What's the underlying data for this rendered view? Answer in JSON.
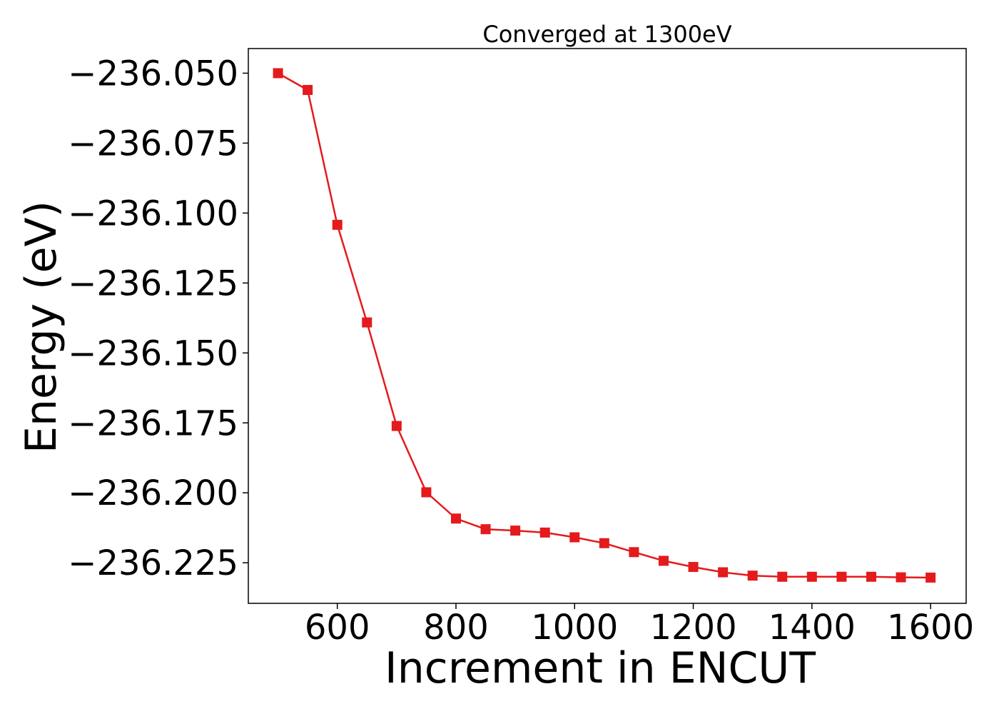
{
  "chart_data": {
    "type": "line",
    "title": "Converged at 1300eV",
    "xlabel": "Increment in ENCUT",
    "ylabel": "Energy (eV)",
    "xlim": [
      450,
      1660
    ],
    "ylim": [
      -236.2395,
      -236.0412
    ],
    "x_ticks": [
      600,
      800,
      1000,
      1200,
      1400,
      1600
    ],
    "x_tick_labels": [
      "600",
      "800",
      "1000",
      "1200",
      "1400",
      "1600"
    ],
    "y_ticks": [
      -236.05,
      -236.075,
      -236.1,
      -236.125,
      -236.15,
      -236.175,
      -236.2,
      -236.225
    ],
    "y_tick_labels": [
      "−236.050",
      "−236.075",
      "−236.100",
      "−236.125",
      "−236.150",
      "−236.175",
      "−236.200",
      "−236.225"
    ],
    "grid": false,
    "marker": "square",
    "line_color": "#e41a1c",
    "x": [
      500,
      550,
      600,
      650,
      700,
      750,
      800,
      850,
      900,
      950,
      1000,
      1050,
      1100,
      1150,
      1200,
      1250,
      1300,
      1350,
      1400,
      1450,
      1500,
      1550,
      1600
    ],
    "y": [
      -236.05,
      -236.056,
      -236.1042,
      -236.1391,
      -236.1761,
      -236.1998,
      -236.2092,
      -236.213,
      -236.2135,
      -236.2142,
      -236.2159,
      -236.218,
      -236.2212,
      -236.2243,
      -236.2265,
      -236.2284,
      -236.2296,
      -236.23,
      -236.23,
      -236.23,
      -236.23,
      -236.2302,
      -236.2303
    ]
  }
}
